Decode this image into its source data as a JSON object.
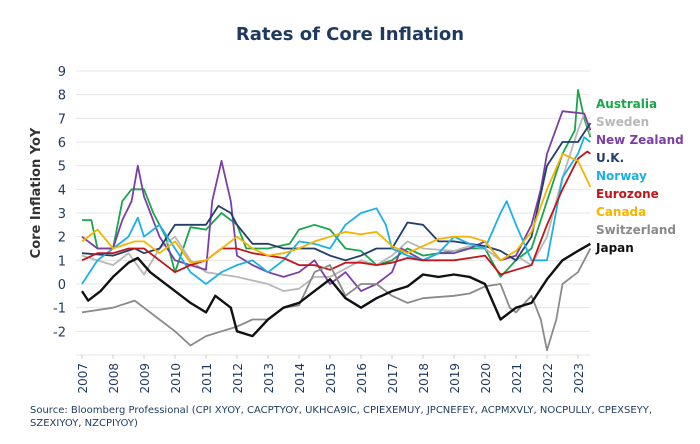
{
  "chart_data": {
    "type": "line",
    "title": "Rates of Core Inflation",
    "ylabel": "Core Inflation YoY",
    "xlabel": "",
    "xlim": [
      2007,
      2023.5
    ],
    "ylim": [
      -3,
      9
    ],
    "yticks": [
      "-2",
      "-1",
      "0",
      "1",
      "2",
      "3",
      "4",
      "5",
      "6",
      "7",
      "8",
      "9"
    ],
    "xticks": [
      "2007",
      "2008",
      "2009",
      "2010",
      "2011",
      "2012",
      "2013",
      "2014",
      "2015",
      "2016",
      "2017",
      "2018",
      "2019",
      "2020",
      "2021",
      "2022",
      "2023"
    ],
    "grid": true,
    "legend_placement": "right",
    "series": [
      {
        "name": "Australia",
        "color": "#1aa64a",
        "x": [
          2007,
          2007.3,
          2007.5,
          2008,
          2008.3,
          2008.6,
          2009,
          2009.3,
          2009.7,
          2010,
          2010.5,
          2011,
          2011.5,
          2012,
          2012.3,
          2013,
          2013.7,
          2014,
          2014.5,
          2015,
          2015.5,
          2016,
          2016.5,
          2017,
          2017.5,
          2018,
          2019,
          2019.5,
          2020,
          2020.5,
          2021,
          2021.5,
          2022,
          2022.5,
          2022.9,
          2023,
          2023.2,
          2023.4
        ],
        "y": [
          2.7,
          2.7,
          1.5,
          1.5,
          3.5,
          4.0,
          4.0,
          3.0,
          2.0,
          0.5,
          2.4,
          2.3,
          3.0,
          2.5,
          1.5,
          1.5,
          1.7,
          2.3,
          2.5,
          2.3,
          1.5,
          1.4,
          0.8,
          1.0,
          1.5,
          1.2,
          1.4,
          1.5,
          1.5,
          0.3,
          1.0,
          1.5,
          3.5,
          5.5,
          6.5,
          8.2,
          7.0,
          6.2
        ]
      },
      {
        "name": "Sweden",
        "color": "#b8b8b8",
        "x": [
          2007,
          2008,
          2008.5,
          2009,
          2009.5,
          2010,
          2010.5,
          2011,
          2012,
          2013,
          2013.5,
          2014,
          2014.5,
          2015,
          2016,
          2016.5,
          2017,
          2017.5,
          2018,
          2019,
          2019.5,
          2020,
          2020.5,
          2021,
          2021.5,
          2022,
          2022.5,
          2023,
          2023.2,
          2023.4
        ],
        "y": [
          1.2,
          0.8,
          1.3,
          0.4,
          1.5,
          2.0,
          1.0,
          0.5,
          0.3,
          0.0,
          -0.3,
          -0.2,
          0.3,
          0.3,
          1.0,
          0.8,
          1.2,
          1.8,
          1.5,
          1.4,
          1.6,
          1.5,
          1.0,
          1.2,
          0.8,
          2.0,
          4.5,
          6.5,
          7.2,
          6.3
        ]
      },
      {
        "name": "New Zealand",
        "color": "#7b3fa6",
        "x": [
          2007,
          2007.5,
          2008,
          2008.3,
          2008.6,
          2008.8,
          2009,
          2009.5,
          2010,
          2010.5,
          2011,
          2011.2,
          2011.5,
          2011.8,
          2012,
          2012.5,
          2013,
          2013.5,
          2014,
          2014.5,
          2015,
          2015.5,
          2016,
          2016.5,
          2017,
          2017.3,
          2018,
          2018.5,
          2019,
          2019.5,
          2020,
          2020.5,
          2021,
          2021.5,
          2021.8,
          2022,
          2022.5,
          2023.2,
          2023.4
        ],
        "y": [
          2.0,
          1.5,
          1.5,
          2.7,
          3.5,
          5.0,
          3.7,
          2.0,
          1.0,
          0.8,
          0.6,
          3.5,
          5.2,
          3.5,
          1.2,
          0.8,
          0.5,
          0.3,
          0.5,
          1.0,
          0.0,
          0.5,
          -0.3,
          0.0,
          0.5,
          1.5,
          1.0,
          1.3,
          1.3,
          1.5,
          1.8,
          1.0,
          1.2,
          2.5,
          4.0,
          5.5,
          7.3,
          7.2,
          6.5
        ]
      },
      {
        "name": "U.K.",
        "color": "#243e6b",
        "x": [
          2007,
          2008,
          2008.7,
          2009,
          2009.5,
          2010,
          2010.5,
          2011,
          2011.4,
          2011.8,
          2012,
          2012.5,
          2013,
          2013.5,
          2014,
          2014.5,
          2015,
          2015.5,
          2016,
          2016.5,
          2017,
          2017.5,
          2018,
          2018.5,
          2019,
          2019.5,
          2020,
          2020.5,
          2021,
          2021.5,
          2022,
          2022.5,
          2023,
          2023.4
        ],
        "y": [
          1.3,
          1.2,
          1.5,
          1.3,
          1.5,
          2.5,
          2.5,
          2.5,
          3.3,
          3.0,
          2.5,
          1.7,
          1.7,
          1.5,
          1.5,
          1.5,
          1.2,
          1.0,
          1.2,
          1.5,
          1.5,
          2.6,
          2.5,
          1.8,
          1.8,
          1.7,
          1.6,
          1.4,
          1.0,
          2.0,
          5.0,
          6.0,
          6.0,
          6.8
        ]
      },
      {
        "name": "Norway",
        "color": "#1cb0e8",
        "x": [
          2007,
          2007.5,
          2008,
          2008.5,
          2008.8,
          2009,
          2009.5,
          2010,
          2010.5,
          2011,
          2011.5,
          2012,
          2012.5,
          2013,
          2013.5,
          2014,
          2014.5,
          2015,
          2015.5,
          2016,
          2016.5,
          2016.8,
          2017,
          2017.5,
          2018,
          2018.5,
          2019,
          2019.5,
          2020,
          2020.5,
          2020.7,
          2021,
          2021.5,
          2022,
          2022.5,
          2023,
          2023.2,
          2023.4
        ],
        "y": [
          0.0,
          1.0,
          1.5,
          2.0,
          2.8,
          2.0,
          2.5,
          1.5,
          0.5,
          0.0,
          0.5,
          0.8,
          1.0,
          0.5,
          1.0,
          1.8,
          1.7,
          1.5,
          2.5,
          3.0,
          3.2,
          2.5,
          1.5,
          1.2,
          1.0,
          1.3,
          2.0,
          1.7,
          1.5,
          3.0,
          3.5,
          2.5,
          1.0,
          1.0,
          4.5,
          5.5,
          6.2,
          6.0
        ]
      },
      {
        "name": "Eurozone",
        "color": "#c0161b",
        "x": [
          2007,
          2007.5,
          2008,
          2008.5,
          2009,
          2009.5,
          2010,
          2010.5,
          2011,
          2011.5,
          2012,
          2012.5,
          2013,
          2013.5,
          2014,
          2014.5,
          2015,
          2015.5,
          2016,
          2016.5,
          2017,
          2017.5,
          2018,
          2019,
          2019.5,
          2020,
          2020.5,
          2021,
          2021.5,
          2022,
          2022.5,
          2023,
          2023.3,
          2023.4
        ],
        "y": [
          1.0,
          1.3,
          1.3,
          1.5,
          1.5,
          1.0,
          0.5,
          0.8,
          1.0,
          1.5,
          1.5,
          1.3,
          1.2,
          1.1,
          0.8,
          0.8,
          0.6,
          0.9,
          0.9,
          0.8,
          0.9,
          1.1,
          1.0,
          1.0,
          1.1,
          1.2,
          0.4,
          0.6,
          0.8,
          2.5,
          4.0,
          5.3,
          5.6,
          5.5
        ]
      },
      {
        "name": "Canada",
        "color": "#f5b400",
        "x": [
          2007,
          2007.5,
          2008,
          2008.7,
          2009,
          2009.5,
          2010,
          2010.5,
          2011,
          2011.5,
          2012,
          2012.5,
          2013,
          2013.5,
          2014,
          2014.5,
          2015,
          2015.5,
          2016,
          2016.5,
          2017,
          2017.5,
          2018,
          2018.5,
          2019,
          2019.5,
          2020,
          2020.5,
          2021,
          2021.5,
          2022,
          2022.5,
          2023,
          2023.4
        ],
        "y": [
          1.8,
          2.3,
          1.5,
          1.8,
          1.8,
          1.3,
          1.8,
          0.9,
          1.0,
          1.5,
          2.0,
          1.5,
          1.2,
          1.3,
          1.5,
          1.8,
          2.0,
          2.2,
          2.1,
          2.2,
          1.6,
          1.3,
          1.6,
          1.9,
          2.0,
          2.0,
          1.8,
          1.0,
          1.4,
          2.2,
          4.0,
          5.5,
          5.2,
          4.1
        ]
      },
      {
        "name": "Switzerland",
        "color": "#8a8a8a",
        "x": [
          2007,
          2008,
          2008.7,
          2009,
          2009.5,
          2010,
          2010.5,
          2011,
          2011.5,
          2012,
          2012.5,
          2013,
          2013.5,
          2014,
          2014.5,
          2015,
          2015.5,
          2016,
          2016.5,
          2017,
          2017.5,
          2018,
          2019,
          2019.5,
          2020,
          2020.5,
          2020.8,
          2021,
          2021.5,
          2021.8,
          2022,
          2022.3,
          2022.5,
          2023,
          2023.4
        ],
        "y": [
          -1.2,
          -1.0,
          -0.7,
          -1.0,
          -1.5,
          -2.0,
          -2.6,
          -2.2,
          -2.0,
          -1.8,
          -1.5,
          -1.5,
          -1.0,
          -0.9,
          0.5,
          0.8,
          -0.5,
          0.0,
          0.0,
          -0.5,
          -0.8,
          -0.6,
          -0.5,
          -0.4,
          -0.1,
          0.0,
          -1.0,
          -1.2,
          -0.5,
          -1.5,
          -2.8,
          -1.5,
          0.0,
          0.5,
          1.5
        ]
      },
      {
        "name": "Japan",
        "color": "#111111",
        "x": [
          2007,
          2007.2,
          2007.6,
          2008,
          2008.5,
          2008.8,
          2009.2,
          2009.5,
          2010,
          2010.5,
          2011,
          2011.3,
          2011.8,
          2012,
          2012.5,
          2013,
          2013.5,
          2014,
          2014.5,
          2015,
          2015.5,
          2016,
          2016.5,
          2017,
          2017.5,
          2018,
          2018.5,
          2019,
          2019.5,
          2020,
          2020.5,
          2021,
          2021.5,
          2022,
          2022.5,
          2023,
          2023.4
        ],
        "y": [
          -0.3,
          -0.7,
          -0.3,
          0.3,
          0.9,
          1.1,
          0.5,
          0.2,
          -0.3,
          -0.8,
          -1.2,
          -0.5,
          -1.0,
          -2.0,
          -2.2,
          -1.5,
          -1.0,
          -0.8,
          -0.3,
          0.2,
          -0.6,
          -1.0,
          -0.6,
          -0.3,
          -0.1,
          0.4,
          0.3,
          0.4,
          0.3,
          0.0,
          -1.5,
          -1.0,
          -0.8,
          0.2,
          1.0,
          1.4,
          1.7
        ]
      }
    ]
  },
  "source": "Source: Bloomberg Professional (CPI XYOY, CACPTYOY, UKHCA9IC, CPIEXEMUY, JPCNEFEY, ACPMXVLY, NOCPULLY, CPEXSEYY, SZEXIYOY, NZCPIYOY)"
}
